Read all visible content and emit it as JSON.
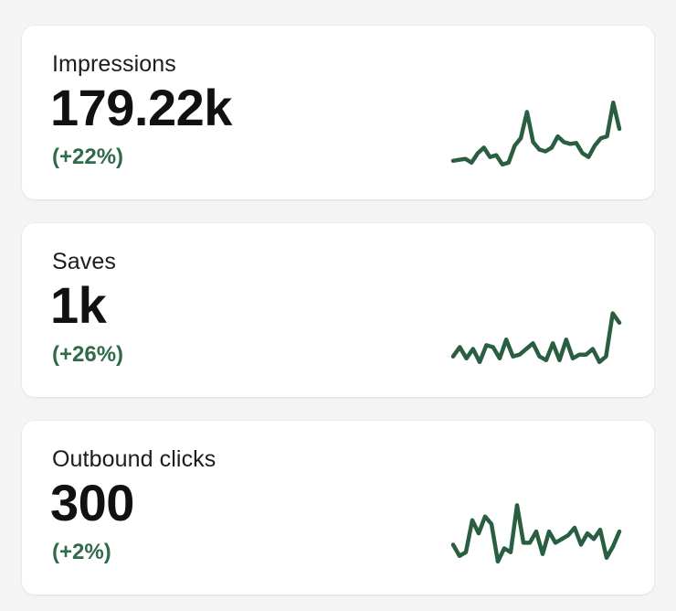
{
  "accent_color": "#2f6a4a",
  "metrics": [
    {
      "label": "Impressions",
      "value": "179.22k",
      "change": "(+22%)",
      "trend": [
        10,
        11,
        12,
        8,
        18,
        24,
        14,
        16,
        6,
        8,
        26,
        34,
        62,
        30,
        22,
        20,
        24,
        36,
        30,
        28,
        29,
        18,
        14,
        26,
        34,
        36,
        72,
        44
      ]
    },
    {
      "label": "Saves",
      "value": "1k",
      "change": "(+26%)",
      "trend": [
        12,
        22,
        10,
        20,
        6,
        24,
        22,
        10,
        30,
        12,
        14,
        20,
        26,
        12,
        8,
        26,
        8,
        30,
        10,
        14,
        14,
        20,
        6,
        12,
        58,
        48
      ]
    },
    {
      "label": "Outbound clicks",
      "value": "300",
      "change": "(+2%)",
      "trend": [
        22,
        10,
        14,
        48,
        34,
        52,
        44,
        4,
        18,
        14,
        64,
        24,
        24,
        36,
        12,
        36,
        24,
        28,
        32,
        40,
        22,
        34,
        28,
        38,
        8,
        20,
        36
      ]
    }
  ]
}
